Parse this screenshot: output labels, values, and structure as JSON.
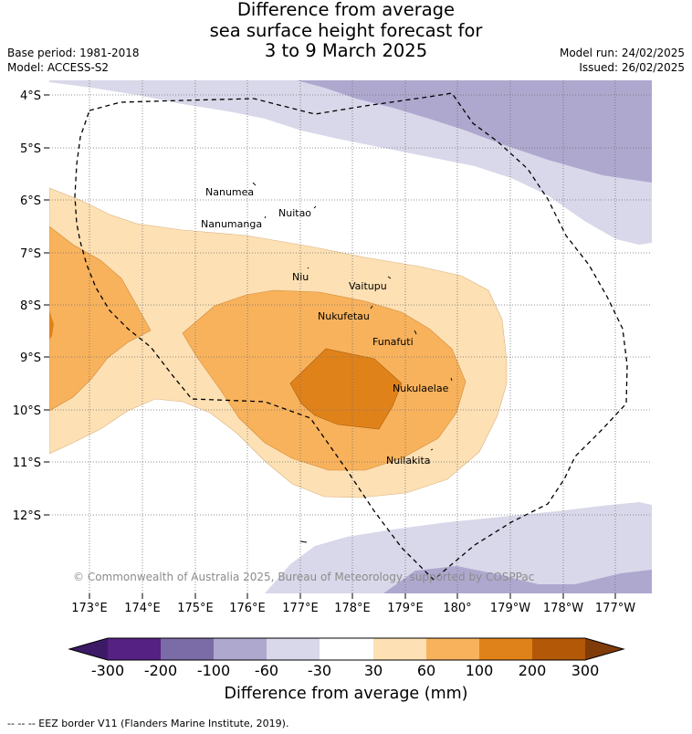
{
  "title_lines": [
    "Difference from average",
    "sea surface height forecast for",
    "3 to 9 March 2025"
  ],
  "base_period": "Base period: 1981-2018",
  "model": "Model: ACCESS-S2",
  "model_run": "Model run: 24/02/2025",
  "issued": "Issued: 26/02/2025",
  "lat_labels": [
    "4°S",
    "5°S",
    "6°S",
    "7°S",
    "8°S",
    "9°S",
    "10°S",
    "11°S",
    "12°S"
  ],
  "lon_labels": [
    "173°E",
    "174°E",
    "175°E",
    "176°E",
    "177°E",
    "178°E",
    "179°E",
    "180°",
    "179°W",
    "178°W",
    "177°W"
  ],
  "places": [
    "Nanumea",
    "Nuitao",
    "Nanumanga",
    "Niu",
    "Vaitupu",
    "Nukufetau",
    "Funafuti",
    "Nukulaelae",
    "Nuilakita"
  ],
  "copyright": "© Commonwealth of Australia 2025, Bureau of Meteorology, supported by COSPPac",
  "colorbar": {
    "labels": [
      "-300",
      "-200",
      "-100",
      "-60",
      "-30",
      "30",
      "60",
      "100",
      "200",
      "300"
    ],
    "colors": [
      "#3d1a66",
      "#552183",
      "#7b6ba6",
      "#aea8cf",
      "#d8d8ea",
      "#ffffff",
      "#fde0b3",
      "#f8b25c",
      "#e0821a",
      "#b35806",
      "#7f3b08"
    ],
    "title": "Difference from average (mm)"
  },
  "eez_note": "--  --  -- EEZ border V11 (Flanders Marine Institute, 2019)."
}
